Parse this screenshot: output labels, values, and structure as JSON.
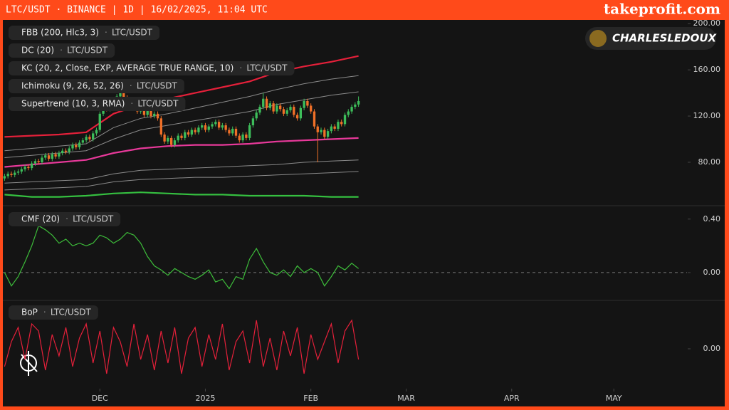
{
  "header": {
    "title": "LTC/USDT · BINANCE | 1D | 16/02/2025, 11:04 UTC",
    "brand": "takeprofit.com",
    "badge": "CHARLESLEDOUX"
  },
  "chart_data": [
    {
      "type": "candlestick",
      "indicators": [
        {
          "name": "FBB (200, Hlc3, 3)",
          "symbol": "LTC/USDT"
        },
        {
          "name": "DC (20)",
          "symbol": "LTC/USDT"
        },
        {
          "name": "KC (20, 2, Close, EXP, AVERAGE TRUE RANGE, 10)",
          "symbol": "LTC/USDT"
        },
        {
          "name": "Ichimoku (9, 26, 52, 26)",
          "symbol": "LTC/USDT"
        },
        {
          "name": "Supertrend (10, 3, RMA)",
          "symbol": "LTC/USDT"
        }
      ],
      "up_color": "#3dbd5a",
      "down_color": "#f07028",
      "x": [
        0,
        1,
        2,
        3,
        4,
        5,
        6,
        7,
        8,
        9,
        10,
        11,
        12,
        13,
        14,
        15,
        16,
        17,
        18,
        19,
        20,
        21,
        22,
        23,
        24,
        25,
        26,
        27,
        28,
        29,
        30,
        31,
        32,
        33,
        34,
        35,
        36,
        37,
        38,
        39,
        40,
        41,
        42,
        43,
        44,
        45,
        46,
        47,
        48,
        49,
        50,
        51,
        52,
        53,
        54,
        55,
        56,
        57,
        58,
        59,
        60,
        61,
        62,
        63,
        64,
        65,
        66,
        67,
        68,
        69,
        70,
        71,
        72,
        73,
        74,
        75,
        76,
        77,
        78,
        79,
        80,
        81,
        82,
        83,
        84,
        85,
        86,
        87,
        88,
        89,
        90,
        91,
        92,
        93,
        94,
        95,
        96,
        97,
        98,
        99,
        100,
        101,
        102,
        103,
        104
      ],
      "open": [
        66,
        68,
        70,
        69,
        71,
        72,
        74,
        76,
        75,
        79,
        81,
        80,
        84,
        86,
        83,
        87,
        85,
        88,
        90,
        89,
        92,
        95,
        93,
        97,
        99,
        102,
        100,
        105,
        108,
        122,
        128,
        126,
        134,
        131,
        137,
        140,
        136,
        133,
        129,
        128,
        124,
        126,
        121,
        125,
        120,
        122,
        118,
        104,
        98,
        101,
        95,
        99,
        103,
        101,
        106,
        104,
        108,
        106,
        110,
        112,
        108,
        111,
        113,
        115,
        110,
        112,
        108,
        105,
        109,
        103,
        99,
        104,
        101,
        112,
        118,
        123,
        128,
        135,
        127,
        131,
        124,
        129,
        126,
        122,
        125,
        128,
        121,
        118,
        127,
        133,
        129,
        124,
        111,
        106,
        108,
        102,
        107,
        111,
        109,
        115,
        113,
        121,
        124,
        128,
        130
      ],
      "high": [
        70,
        72,
        72,
        73,
        74,
        76,
        78,
        78,
        81,
        83,
        83,
        86,
        88,
        88,
        89,
        89,
        90,
        92,
        92,
        94,
        97,
        97,
        99,
        101,
        104,
        104,
        107,
        110,
        124,
        130,
        130,
        136,
        136,
        139,
        142,
        142,
        138,
        135,
        131,
        130,
        128,
        128,
        127,
        127,
        124,
        124,
        120,
        106,
        103,
        103,
        101,
        105,
        105,
        108,
        108,
        110,
        110,
        112,
        114,
        114,
        113,
        115,
        117,
        117,
        114,
        114,
        110,
        111,
        111,
        105,
        106,
        106,
        114,
        120,
        125,
        130,
        140,
        137,
        133,
        133,
        131,
        131,
        128,
        127,
        130,
        130,
        123,
        129,
        135,
        135,
        131,
        126,
        113,
        110,
        110,
        109,
        113,
        113,
        117,
        117,
        123,
        126,
        130,
        132,
        137
      ],
      "low": [
        64,
        66,
        67,
        67,
        69,
        70,
        72,
        73,
        73,
        77,
        78,
        78,
        82,
        81,
        81,
        83,
        83,
        86,
        87,
        87,
        90,
        91,
        91,
        95,
        97,
        98,
        98,
        103,
        106,
        120,
        124,
        124,
        129,
        129,
        135,
        134,
        131,
        127,
        126,
        122,
        122,
        119,
        119,
        118,
        118,
        116,
        102,
        96,
        96,
        93,
        93,
        97,
        99,
        99,
        102,
        102,
        104,
        104,
        108,
        106,
        106,
        109,
        111,
        108,
        108,
        106,
        103,
        103,
        101,
        97,
        97,
        99,
        99,
        110,
        116,
        121,
        126,
        125,
        125,
        122,
        122,
        124,
        120,
        120,
        123,
        119,
        116,
        116,
        125,
        127,
        122,
        109,
        80,
        104,
        100,
        100,
        105,
        107,
        107,
        111,
        111,
        119,
        122,
        126,
        128
      ],
      "close": [
        68,
        70,
        69,
        71,
        72,
        74,
        76,
        75,
        79,
        81,
        80,
        84,
        86,
        83,
        87,
        85,
        88,
        90,
        89,
        92,
        95,
        93,
        97,
        99,
        102,
        100,
        105,
        108,
        122,
        128,
        126,
        134,
        131,
        137,
        140,
        136,
        133,
        129,
        128,
        124,
        126,
        121,
        125,
        120,
        122,
        118,
        104,
        98,
        101,
        95,
        99,
        103,
        101,
        106,
        104,
        108,
        106,
        110,
        112,
        108,
        111,
        113,
        115,
        110,
        112,
        108,
        105,
        109,
        103,
        99,
        104,
        101,
        112,
        118,
        123,
        128,
        135,
        127,
        131,
        124,
        129,
        126,
        122,
        125,
        128,
        121,
        118,
        127,
        133,
        129,
        124,
        111,
        106,
        108,
        102,
        107,
        111,
        109,
        115,
        113,
        121,
        124,
        128,
        130,
        133
      ],
      "overlays": [
        {
          "color": "#e5203a",
          "x": [
            0,
            8,
            16,
            24,
            32,
            40,
            48,
            56,
            64,
            72,
            80,
            88,
            96,
            104
          ],
          "values": [
            102,
            103,
            104,
            106,
            122,
            130,
            135,
            140,
            145,
            150,
            158,
            163,
            167,
            172
          ]
        },
        {
          "color": "#8a8a8a",
          "x": [
            0,
            8,
            16,
            24,
            32,
            40,
            48,
            56,
            64,
            72,
            80,
            88,
            96,
            104
          ],
          "values": [
            90,
            92,
            94,
            96,
            110,
            118,
            122,
            127,
            132,
            137,
            143,
            148,
            152,
            155
          ]
        },
        {
          "color": "#8a8a8a",
          "x": [
            0,
            8,
            16,
            24,
            32,
            40,
            48,
            56,
            64,
            72,
            80,
            88,
            96,
            104
          ],
          "values": [
            84,
            86,
            88,
            90,
            100,
            108,
            112,
            116,
            120,
            124,
            130,
            134,
            138,
            141
          ]
        },
        {
          "color": "#e8399a",
          "x": [
            0,
            8,
            16,
            24,
            32,
            40,
            48,
            56,
            64,
            72,
            80,
            88,
            96,
            104
          ],
          "values": [
            76,
            78,
            80,
            82,
            88,
            92,
            94,
            95,
            95,
            96,
            98,
            99,
            100,
            101
          ]
        },
        {
          "color": "#8a8a8a",
          "x": [
            0,
            8,
            16,
            24,
            32,
            40,
            48,
            56,
            64,
            72,
            80,
            88,
            96,
            104
          ],
          "values": [
            62,
            63,
            64,
            65,
            70,
            73,
            74,
            75,
            76,
            77,
            78,
            80,
            81,
            82
          ]
        },
        {
          "color": "#8a8a8a",
          "x": [
            0,
            8,
            16,
            24,
            32,
            40,
            48,
            56,
            64,
            72,
            80,
            88,
            96,
            104
          ],
          "values": [
            56,
            57,
            58,
            59,
            63,
            65,
            66,
            67,
            67,
            68,
            69,
            70,
            71,
            72
          ]
        },
        {
          "color": "#35c040",
          "x": [
            0,
            8,
            16,
            24,
            32,
            40,
            48,
            56,
            64,
            72,
            80,
            88,
            96,
            104
          ],
          "values": [
            52,
            50,
            50,
            51,
            53,
            54,
            53,
            52,
            52,
            51,
            51,
            51,
            50,
            50
          ]
        }
      ],
      "xlim": [
        -0.5,
        200.5
      ],
      "ylim": [
        43,
        202
      ],
      "yticks": [
        {
          "value": 80,
          "label": "80.00"
        },
        {
          "value": 120,
          "label": "120.00"
        },
        {
          "value": 160,
          "label": "160.00"
        },
        {
          "value": 200,
          "label": "200.00"
        }
      ]
    },
    {
      "type": "line",
      "indicators": [
        {
          "name": "CMF (20)",
          "symbol": "LTC/USDT"
        }
      ],
      "color": "#3dbd3a",
      "x": [
        0,
        2,
        4,
        6,
        8,
        10,
        12,
        14,
        16,
        18,
        20,
        22,
        24,
        26,
        28,
        30,
        32,
        34,
        36,
        38,
        40,
        42,
        44,
        46,
        48,
        50,
        52,
        54,
        56,
        58,
        60,
        62,
        64,
        66,
        68,
        70,
        72,
        74,
        76,
        78,
        80,
        82,
        84,
        86,
        88,
        90,
        92,
        94,
        96,
        98,
        100,
        102,
        104
      ],
      "values": [
        0.0,
        -0.1,
        -0.03,
        0.08,
        0.2,
        0.35,
        0.32,
        0.28,
        0.22,
        0.25,
        0.2,
        0.22,
        0.2,
        0.22,
        0.28,
        0.26,
        0.22,
        0.25,
        0.3,
        0.28,
        0.22,
        0.12,
        0.05,
        0.02,
        -0.02,
        0.03,
        0.0,
        -0.03,
        -0.05,
        -0.02,
        0.02,
        -0.07,
        -0.05,
        -0.12,
        -0.03,
        -0.05,
        0.1,
        0.18,
        0.08,
        0.0,
        -0.02,
        0.02,
        -0.03,
        0.05,
        0.0,
        0.03,
        0.0,
        -0.1,
        -0.03,
        0.05,
        0.02,
        0.07,
        0.03
      ],
      "xlim": [
        -0.5,
        200.5
      ],
      "ylim": [
        -0.2,
        0.5
      ],
      "zero_line": true,
      "yticks": [
        {
          "value": 0.4,
          "label": "0.40"
        },
        {
          "value": 0,
          "label": "0.00"
        }
      ]
    },
    {
      "type": "line",
      "indicators": [
        {
          "name": "BoP",
          "symbol": "LTC/USDT"
        }
      ],
      "color": "#e5203a",
      "x": [
        0,
        2,
        4,
        6,
        8,
        10,
        12,
        14,
        16,
        18,
        20,
        22,
        24,
        26,
        28,
        30,
        32,
        34,
        36,
        38,
        40,
        42,
        44,
        46,
        48,
        50,
        52,
        54,
        56,
        58,
        60,
        62,
        64,
        66,
        68,
        70,
        72,
        74,
        76,
        78,
        80,
        82,
        84,
        86,
        88,
        90,
        92,
        94,
        96,
        98,
        100,
        102,
        104
      ],
      "values": [
        -0.5,
        0.2,
        0.6,
        -0.3,
        0.7,
        0.5,
        -0.6,
        0.4,
        -0.2,
        0.6,
        -0.5,
        0.3,
        0.7,
        -0.4,
        0.5,
        -0.7,
        0.6,
        0.2,
        -0.5,
        0.7,
        -0.3,
        0.4,
        -0.6,
        0.5,
        -0.4,
        0.6,
        -0.7,
        0.3,
        0.6,
        -0.5,
        0.4,
        -0.3,
        0.7,
        -0.6,
        0.2,
        0.5,
        -0.4,
        0.8,
        -0.5,
        0.3,
        -0.6,
        0.5,
        -0.2,
        0.6,
        -0.7,
        0.4,
        -0.3,
        0.2,
        0.7,
        -0.4,
        0.5,
        0.8,
        -0.3
      ],
      "xlim": [
        -0.5,
        200.5
      ],
      "ylim": [
        -1.1,
        1.1
      ],
      "zero_line": false,
      "yticks": [
        {
          "value": 0,
          "label": "0.00"
        }
      ],
      "xticks": [
        {
          "value": 28,
          "label": "DEC"
        },
        {
          "value": 59,
          "label": "2025"
        },
        {
          "value": 90,
          "label": "FEB"
        },
        {
          "value": 118,
          "label": "MAR"
        },
        {
          "value": 149,
          "label": "APR"
        },
        {
          "value": 179,
          "label": "MAY"
        }
      ]
    }
  ]
}
